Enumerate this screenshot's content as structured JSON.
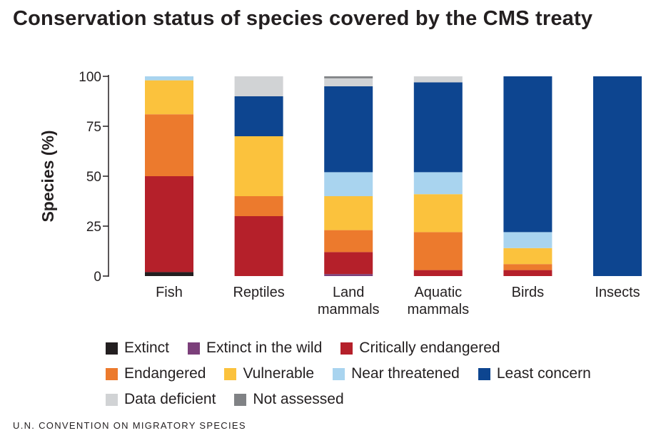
{
  "title": "Conservation status of species covered by the CMS treaty",
  "source": "U.N. CONVENTION ON MIGRATORY SPECIES",
  "chart_data": {
    "type": "bar",
    "stacked": true,
    "title": "Conservation status of species covered by the CMS treaty",
    "xlabel": "",
    "ylabel": "Species (%)",
    "ylim": [
      0,
      100
    ],
    "yticks": [
      0,
      25,
      50,
      75,
      100
    ],
    "grid": false,
    "legend_position": "bottom",
    "categories": [
      [
        "Fish"
      ],
      [
        "Reptiles"
      ],
      [
        "Land",
        "mammals"
      ],
      [
        "Aquatic",
        "mammals"
      ],
      [
        "Birds"
      ],
      [
        "Insects"
      ]
    ],
    "series": [
      {
        "name": "Extinct",
        "color": "#231f20",
        "values": [
          2,
          0,
          0,
          0,
          0,
          0
        ]
      },
      {
        "name": "Extinct in the wild",
        "color": "#7b3f7a",
        "values": [
          0,
          0,
          1,
          0,
          0,
          0
        ]
      },
      {
        "name": "Critically endangered",
        "color": "#b5202a",
        "values": [
          48,
          30,
          11,
          3,
          3,
          0
        ]
      },
      {
        "name": "Endangered",
        "color": "#ec7a2d",
        "values": [
          31,
          10,
          11,
          19,
          3,
          0
        ]
      },
      {
        "name": "Vulnerable",
        "color": "#fbc23d",
        "values": [
          17,
          30,
          17,
          19,
          8,
          0
        ]
      },
      {
        "name": "Near threatened",
        "color": "#a9d4ef",
        "values": [
          2,
          0,
          12,
          11,
          8,
          0
        ]
      },
      {
        "name": "Least concern",
        "color": "#0d4590",
        "values": [
          0,
          20,
          43,
          45,
          78,
          100
        ]
      },
      {
        "name": "Data deficient",
        "color": "#d1d3d5",
        "values": [
          0,
          10,
          4,
          3,
          0,
          0
        ]
      },
      {
        "name": "Not assessed",
        "color": "#808285",
        "values": [
          0,
          0,
          1,
          0,
          0,
          0
        ]
      }
    ],
    "legend_rows": [
      [
        "Extinct",
        "Extinct in the wild",
        "Critically endangered"
      ],
      [
        "Endangered",
        "Vulnerable",
        "Near threatened",
        "Least concern"
      ],
      [
        "Data deficient",
        "Not assessed"
      ]
    ]
  }
}
